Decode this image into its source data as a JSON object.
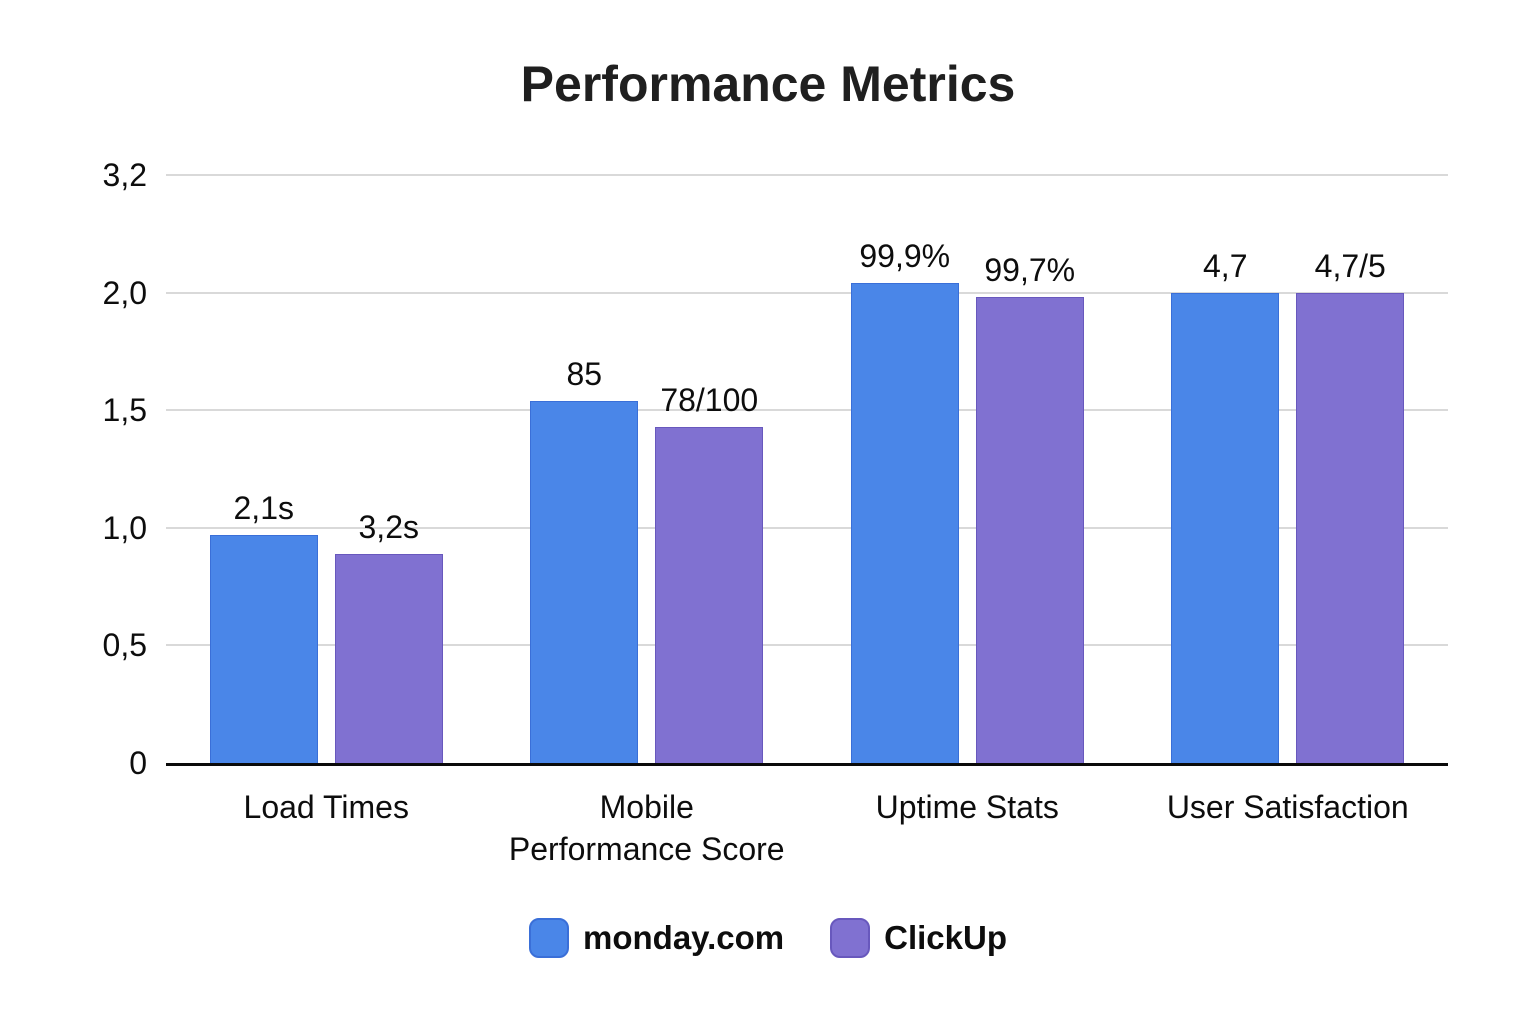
{
  "title": "Performance Metrics",
  "colors": {
    "monday_fill": "#4a86e8",
    "monday_border": "#3a6fd8",
    "clickup_fill": "#8071d1",
    "clickup_border": "#6858bd",
    "gridline": "#d9d9d9",
    "axis": "#0a0a0a",
    "text": "#0d0d0d",
    "title_text": "#1f1f1f"
  },
  "legend": {
    "items": [
      {
        "label": "monday.com",
        "series": "monday"
      },
      {
        "label": "ClickUp",
        "series": "clickup"
      }
    ]
  },
  "chart_data": {
    "type": "bar",
    "title": "Performance Metrics",
    "categories": [
      "Load Times",
      "Mobile Performance Score",
      "Uptime Stats",
      "User Satisfaction"
    ],
    "category_label_lines": [
      [
        "Load Times"
      ],
      [
        "Mobile",
        "Performance Score"
      ],
      [
        "Uptime Stats"
      ],
      [
        "User Satisfaction"
      ]
    ],
    "series": [
      {
        "name": "monday.com",
        "key": "monday",
        "values": [
          2.1,
          85,
          99.9,
          4.7
        ],
        "value_labels": [
          "2,1s",
          "85",
          "99,9%",
          "4,7"
        ],
        "bar_heights_axis_units": [
          0.97,
          1.54,
          2.04,
          2.0
        ]
      },
      {
        "name": "ClickUp",
        "key": "clickup",
        "values": [
          3.2,
          78,
          99.7,
          4.7
        ],
        "value_labels": [
          "3,2s",
          "78/100",
          "99,7%",
          "4,7/5"
        ],
        "bar_heights_axis_units": [
          0.89,
          1.43,
          1.98,
          2.0
        ]
      }
    ],
    "y_axis": {
      "max_units": 2.5,
      "tick_labels_top_to_bottom": [
        "3,2",
        "2,0",
        "1,5",
        "1,0",
        "0,5",
        "0"
      ],
      "ticks": [
        {
          "label": "3,2",
          "units": 2.5
        },
        {
          "label": "2,0",
          "units": 2.0
        },
        {
          "label": "1,5",
          "units": 1.5
        },
        {
          "label": "1,0",
          "units": 1.0
        },
        {
          "label": "0,5",
          "units": 0.5
        },
        {
          "label": "0",
          "units": 0.0
        }
      ]
    },
    "ylim": [
      0,
      2.5
    ],
    "grid": "horizontal",
    "legend_position": "bottom"
  }
}
